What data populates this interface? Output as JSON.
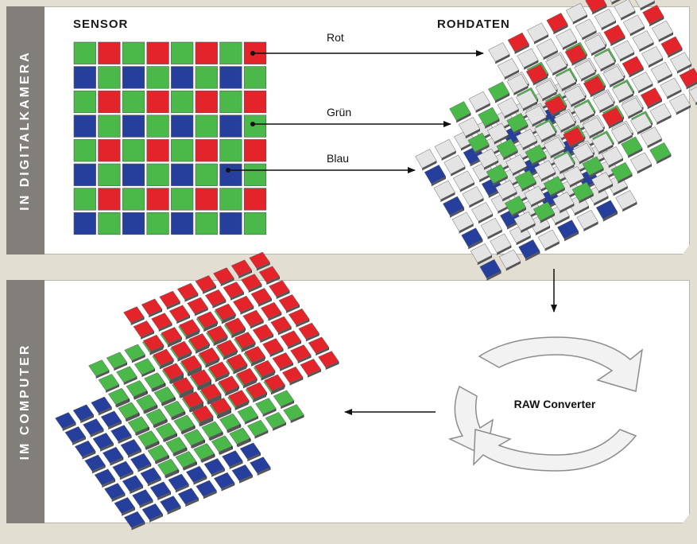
{
  "sections": {
    "top_label": "IN DIGITALKAMERA",
    "bottom_label": "IM COMPUTER"
  },
  "sensor": {
    "title": "SENSOR",
    "grid": [
      "GRGRGRGR",
      "BGBGBGBG",
      "GRGRGRGR",
      "BGBGBGBG",
      "GRGRGRGR",
      "BGBGBGBG",
      "GRGRGRGR",
      "BGBGBGBG"
    ]
  },
  "raw_data": {
    "title": "ROHDATEN",
    "channel_labels": {
      "red": "Rot",
      "green": "Grün",
      "blue": "Blau"
    }
  },
  "converter": {
    "label": "RAW Converter"
  },
  "colors": {
    "red": "#e3252b",
    "green": "#4ab94a",
    "blue": "#273f9c",
    "empty": "#e4e4e4",
    "tab": "#827f7b",
    "background": "#e3ded2"
  }
}
